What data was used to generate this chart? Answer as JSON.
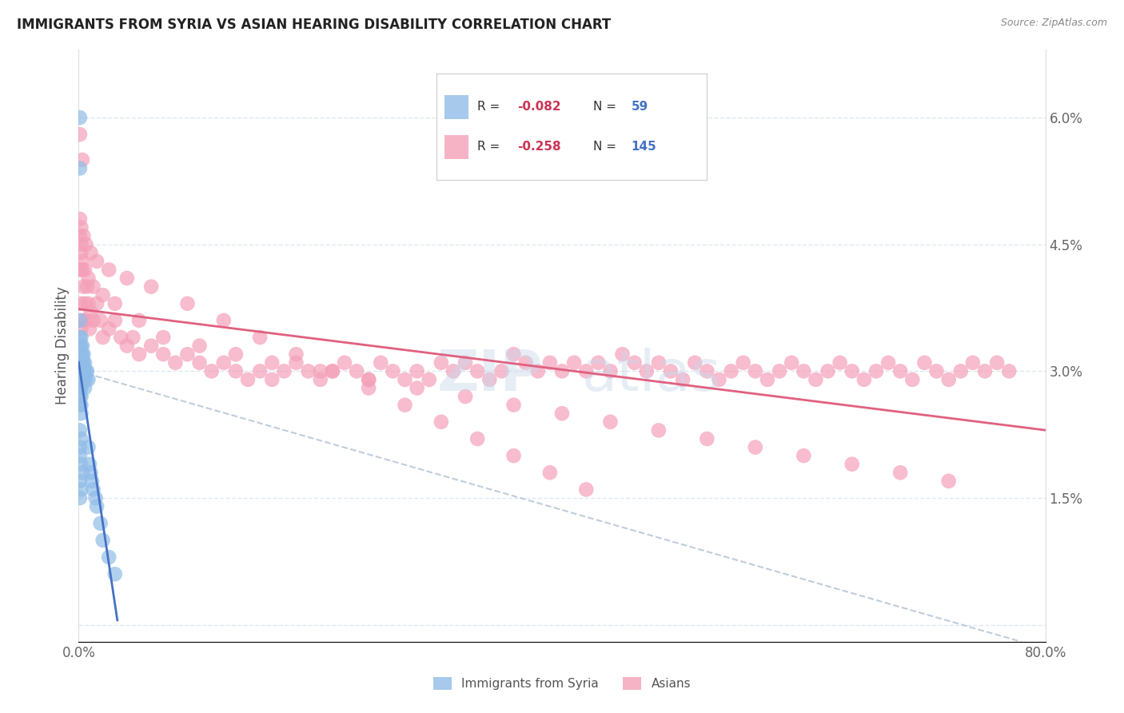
{
  "title": "IMMIGRANTS FROM SYRIA VS ASIAN HEARING DISABILITY CORRELATION CHART",
  "source": "Source: ZipAtlas.com",
  "ylabel": "Hearing Disability",
  "xlim": [
    0.0,
    0.8
  ],
  "ylim": [
    -0.002,
    0.068
  ],
  "syria_color": "#90bce8",
  "asian_color": "#f4a0b8",
  "syria_trend_color": "#4472c4",
  "asian_trend_color": "#e06080",
  "dashed_line_color": "#b8c8d8",
  "background_color": "#ffffff",
  "grid_color": "#dde8f0",
  "legend_text_color": "#4472c4",
  "legend_r_color": "#cc3355",
  "title_color": "#222222",
  "syria_x": [
    0.001,
    0.001,
    0.001,
    0.001,
    0.001,
    0.001,
    0.001,
    0.001,
    0.001,
    0.001,
    0.001,
    0.001,
    0.001,
    0.002,
    0.002,
    0.002,
    0.002,
    0.002,
    0.002,
    0.002,
    0.002,
    0.002,
    0.002,
    0.003,
    0.003,
    0.003,
    0.003,
    0.003,
    0.004,
    0.004,
    0.004,
    0.004,
    0.005,
    0.005,
    0.005,
    0.006,
    0.006,
    0.007,
    0.008,
    0.008,
    0.009,
    0.01,
    0.011,
    0.012,
    0.014,
    0.015,
    0.018,
    0.02,
    0.025,
    0.03,
    0.001,
    0.002,
    0.001,
    0.001,
    0.002,
    0.003,
    0.001,
    0.002,
    0.001
  ],
  "syria_y": [
    0.06,
    0.054,
    0.036,
    0.034,
    0.033,
    0.032,
    0.031,
    0.03,
    0.029,
    0.028,
    0.028,
    0.027,
    0.026,
    0.034,
    0.033,
    0.032,
    0.031,
    0.03,
    0.029,
    0.028,
    0.027,
    0.026,
    0.025,
    0.033,
    0.032,
    0.031,
    0.03,
    0.029,
    0.032,
    0.031,
    0.03,
    0.029,
    0.031,
    0.03,
    0.028,
    0.03,
    0.029,
    0.03,
    0.029,
    0.021,
    0.019,
    0.018,
    0.017,
    0.016,
    0.015,
    0.014,
    0.012,
    0.01,
    0.008,
    0.006,
    0.023,
    0.022,
    0.021,
    0.02,
    0.019,
    0.018,
    0.017,
    0.016,
    0.015
  ],
  "asian_x": [
    0.001,
    0.001,
    0.002,
    0.002,
    0.002,
    0.003,
    0.003,
    0.004,
    0.005,
    0.006,
    0.007,
    0.008,
    0.009,
    0.01,
    0.012,
    0.015,
    0.018,
    0.02,
    0.025,
    0.03,
    0.035,
    0.04,
    0.045,
    0.05,
    0.06,
    0.07,
    0.08,
    0.09,
    0.1,
    0.11,
    0.12,
    0.13,
    0.14,
    0.15,
    0.16,
    0.17,
    0.18,
    0.19,
    0.2,
    0.21,
    0.22,
    0.23,
    0.24,
    0.25,
    0.26,
    0.27,
    0.28,
    0.29,
    0.3,
    0.31,
    0.32,
    0.33,
    0.34,
    0.35,
    0.36,
    0.37,
    0.38,
    0.39,
    0.4,
    0.41,
    0.42,
    0.43,
    0.44,
    0.45,
    0.46,
    0.47,
    0.48,
    0.49,
    0.5,
    0.51,
    0.52,
    0.53,
    0.54,
    0.55,
    0.56,
    0.57,
    0.58,
    0.59,
    0.6,
    0.61,
    0.62,
    0.63,
    0.64,
    0.65,
    0.66,
    0.67,
    0.68,
    0.69,
    0.7,
    0.71,
    0.72,
    0.73,
    0.74,
    0.75,
    0.76,
    0.77,
    0.002,
    0.003,
    0.005,
    0.008,
    0.012,
    0.02,
    0.03,
    0.05,
    0.07,
    0.1,
    0.13,
    0.16,
    0.2,
    0.24,
    0.28,
    0.32,
    0.36,
    0.4,
    0.44,
    0.48,
    0.52,
    0.56,
    0.6,
    0.64,
    0.68,
    0.72,
    0.001,
    0.002,
    0.004,
    0.006,
    0.01,
    0.015,
    0.025,
    0.04,
    0.06,
    0.09,
    0.12,
    0.15,
    0.18,
    0.21,
    0.24,
    0.27,
    0.3,
    0.33,
    0.36,
    0.39,
    0.42,
    0.001,
    0.003
  ],
  "asian_y": [
    0.046,
    0.042,
    0.044,
    0.038,
    0.035,
    0.042,
    0.036,
    0.04,
    0.038,
    0.036,
    0.04,
    0.038,
    0.035,
    0.037,
    0.036,
    0.038,
    0.036,
    0.034,
    0.035,
    0.036,
    0.034,
    0.033,
    0.034,
    0.032,
    0.033,
    0.032,
    0.031,
    0.032,
    0.031,
    0.03,
    0.031,
    0.03,
    0.029,
    0.03,
    0.029,
    0.03,
    0.031,
    0.03,
    0.029,
    0.03,
    0.031,
    0.03,
    0.029,
    0.031,
    0.03,
    0.029,
    0.03,
    0.029,
    0.031,
    0.03,
    0.031,
    0.03,
    0.029,
    0.03,
    0.032,
    0.031,
    0.03,
    0.031,
    0.03,
    0.031,
    0.03,
    0.031,
    0.03,
    0.032,
    0.031,
    0.03,
    0.031,
    0.03,
    0.029,
    0.031,
    0.03,
    0.029,
    0.03,
    0.031,
    0.03,
    0.029,
    0.03,
    0.031,
    0.03,
    0.029,
    0.03,
    0.031,
    0.03,
    0.029,
    0.03,
    0.031,
    0.03,
    0.029,
    0.031,
    0.03,
    0.029,
    0.03,
    0.031,
    0.03,
    0.031,
    0.03,
    0.045,
    0.043,
    0.042,
    0.041,
    0.04,
    0.039,
    0.038,
    0.036,
    0.034,
    0.033,
    0.032,
    0.031,
    0.03,
    0.029,
    0.028,
    0.027,
    0.026,
    0.025,
    0.024,
    0.023,
    0.022,
    0.021,
    0.02,
    0.019,
    0.018,
    0.017,
    0.048,
    0.047,
    0.046,
    0.045,
    0.044,
    0.043,
    0.042,
    0.041,
    0.04,
    0.038,
    0.036,
    0.034,
    0.032,
    0.03,
    0.028,
    0.026,
    0.024,
    0.022,
    0.02,
    0.018,
    0.016,
    0.058,
    0.055
  ]
}
